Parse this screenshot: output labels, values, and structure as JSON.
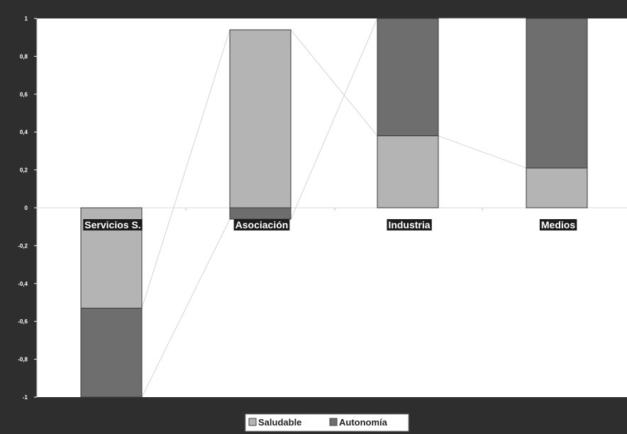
{
  "chart_data": {
    "type": "bar",
    "stacked": true,
    "categories": [
      "Servicios S.",
      "Asociación",
      "Industria",
      "Medios"
    ],
    "series": [
      {
        "name": "Saludable",
        "color": "#b4b4b4",
        "values": [
          -0.53,
          0.94,
          0.38,
          0.21
        ]
      },
      {
        "name": "Autonomía",
        "color": "#6e6e6e",
        "values": [
          -0.47,
          -0.06,
          0.62,
          0.79
        ]
      }
    ],
    "ylim": [
      -1,
      1
    ],
    "yticks": [
      -1,
      -0.8,
      -0.6,
      -0.4,
      -0.2,
      0,
      0.2,
      0.4,
      0.6,
      0.8,
      1
    ],
    "ytick_labels": [
      "-1",
      "-0,8",
      "-0,6",
      "-0,4",
      "-0,2",
      "0",
      "0,2",
      "0,4",
      "0,6",
      "0,8",
      "1"
    ],
    "legend_position": "bottom",
    "series_lines": true,
    "grid": false,
    "title": "",
    "xlabel": "",
    "ylabel": ""
  },
  "legend": {
    "items": [
      "Saludable",
      "Autonomía"
    ]
  },
  "colors": {
    "frame": "#2e2e2e",
    "plot_background": "#ffffff",
    "bar_light": "#b4b4b4",
    "bar_dark": "#6e6e6e",
    "connector": "#d4d4d4"
  }
}
